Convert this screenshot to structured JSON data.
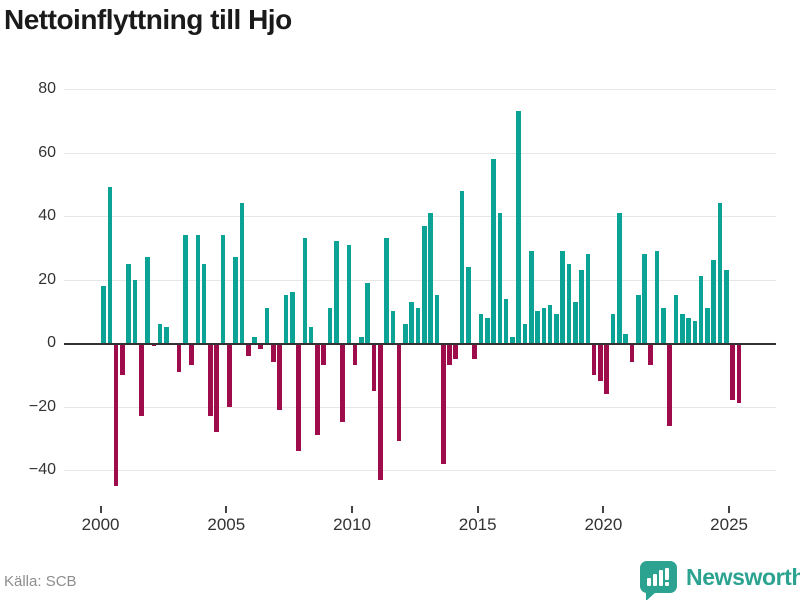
{
  "title": "Nettoinflyttning till Hjo",
  "source": "Källa: SCB",
  "branding": {
    "logo_text": "Newsworthy",
    "logo_icon": "speech-bubble-with-bar-chart-and-exclamation"
  },
  "colors": {
    "positive_bar": "#0ba396",
    "negative_bar": "#9e0c4c",
    "brand_teal": "#2ba390",
    "title_text": "#1a1a1a",
    "axis_text": "#333333",
    "source_text": "#8e8e8e",
    "gridline": "#e7e7e7",
    "zero_line": "#333333"
  },
  "chart_data": {
    "type": "bar",
    "title": "Nettoinflyttning till Hjo",
    "xlabel": "",
    "ylabel": "",
    "period": "quarterly",
    "start_year": 2000,
    "start_quarter": 1,
    "values": [
      18,
      49,
      -45,
      -10,
      25,
      20,
      -23,
      27,
      -1,
      6,
      5,
      0,
      -9,
      34,
      -7,
      34,
      25,
      -23,
      -28,
      34,
      -20,
      27,
      44,
      -4,
      2,
      -2,
      11,
      -6,
      -21,
      15,
      16,
      -34,
      33,
      5,
      -29,
      -7,
      11,
      32,
      -25,
      31,
      -7,
      2,
      19,
      -15,
      -43,
      33,
      10,
      -31,
      6,
      13,
      11,
      37,
      41,
      15,
      -38,
      -7,
      -5,
      48,
      24,
      -5,
      9,
      8,
      58,
      41,
      14,
      2,
      73,
      6,
      29,
      10,
      11,
      12,
      9,
      29,
      25,
      13,
      23,
      28,
      -10,
      -12,
      -16,
      9,
      41,
      3,
      -6,
      15,
      28,
      -7,
      29,
      11,
      -26,
      15,
      9,
      8,
      7,
      21,
      11,
      26,
      44,
      23,
      -18,
      -19
    ],
    "y_ticks": [
      80,
      60,
      40,
      20,
      0,
      -20,
      -40
    ],
    "x_ticks": [
      2000,
      2005,
      2010,
      2015,
      2020,
      2025
    ],
    "ylim": [
      -50,
      85
    ],
    "grid": true,
    "legend": "none"
  }
}
